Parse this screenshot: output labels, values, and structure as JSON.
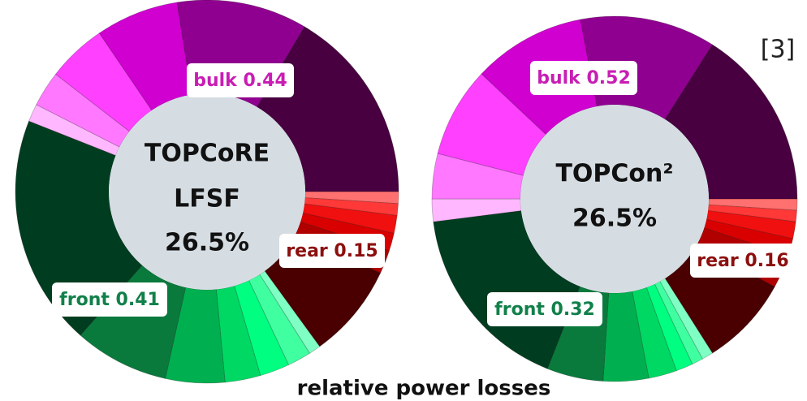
{
  "chart_data": [
    {
      "type": "donut",
      "center_label": [
        "TOPCoRE",
        "LFSF",
        "26.5%"
      ],
      "values": [
        0.01,
        0.01,
        0.015,
        0.015,
        0.02,
        0.08,
        0.01,
        0.02,
        0.025,
        0.03,
        0.05,
        0.08,
        0.195,
        0.015,
        0.03,
        0.05,
        0.07,
        0.11,
        0.165
      ],
      "colors": [
        "#ff7070",
        "#ff3838",
        "#f01010",
        "#d80000",
        "#b00000",
        "#4a0000",
        "#80ffc4",
        "#40ffa0",
        "#00ff80",
        "#00d864",
        "#00b050",
        "#0a7a3c",
        "#003d20",
        "#ffb8ff",
        "#ff78ff",
        "#ff40ff",
        "#d000d0",
        "#900090",
        "#480040"
      ],
      "annotations": [
        {
          "text": "bulk 0.44",
          "color": "#c81eb4"
        },
        {
          "text": "rear 0.15",
          "color": "#8c0f0f"
        },
        {
          "text": "front 0.41",
          "color": "#11804a"
        }
      ]
    },
    {
      "type": "donut",
      "center_label": [
        "TOPCon²",
        "26.5%"
      ],
      "values": [
        0.01,
        0.01,
        0.015,
        0.015,
        0.03,
        0.08,
        0.01,
        0.01,
        0.015,
        0.025,
        0.04,
        0.05,
        0.17,
        0.02,
        0.04,
        0.08,
        0.1,
        0.12,
        0.16
      ],
      "colors": [
        "#ff7070",
        "#ff3838",
        "#f01010",
        "#d80000",
        "#b00000",
        "#4a0000",
        "#80ffc4",
        "#40ffa0",
        "#00ff80",
        "#00d864",
        "#00b050",
        "#0a7a3c",
        "#003d20",
        "#ffb8ff",
        "#ff78ff",
        "#ff40ff",
        "#d000d0",
        "#900090",
        "#480040"
      ],
      "annotations": [
        {
          "text": "bulk 0.52",
          "color": "#c81eb4"
        },
        {
          "text": "rear 0.16",
          "color": "#8c0f0f"
        },
        {
          "text": "front 0.32",
          "color": "#11804a"
        }
      ]
    }
  ],
  "caption": "relative power losses",
  "reference": "[3]"
}
